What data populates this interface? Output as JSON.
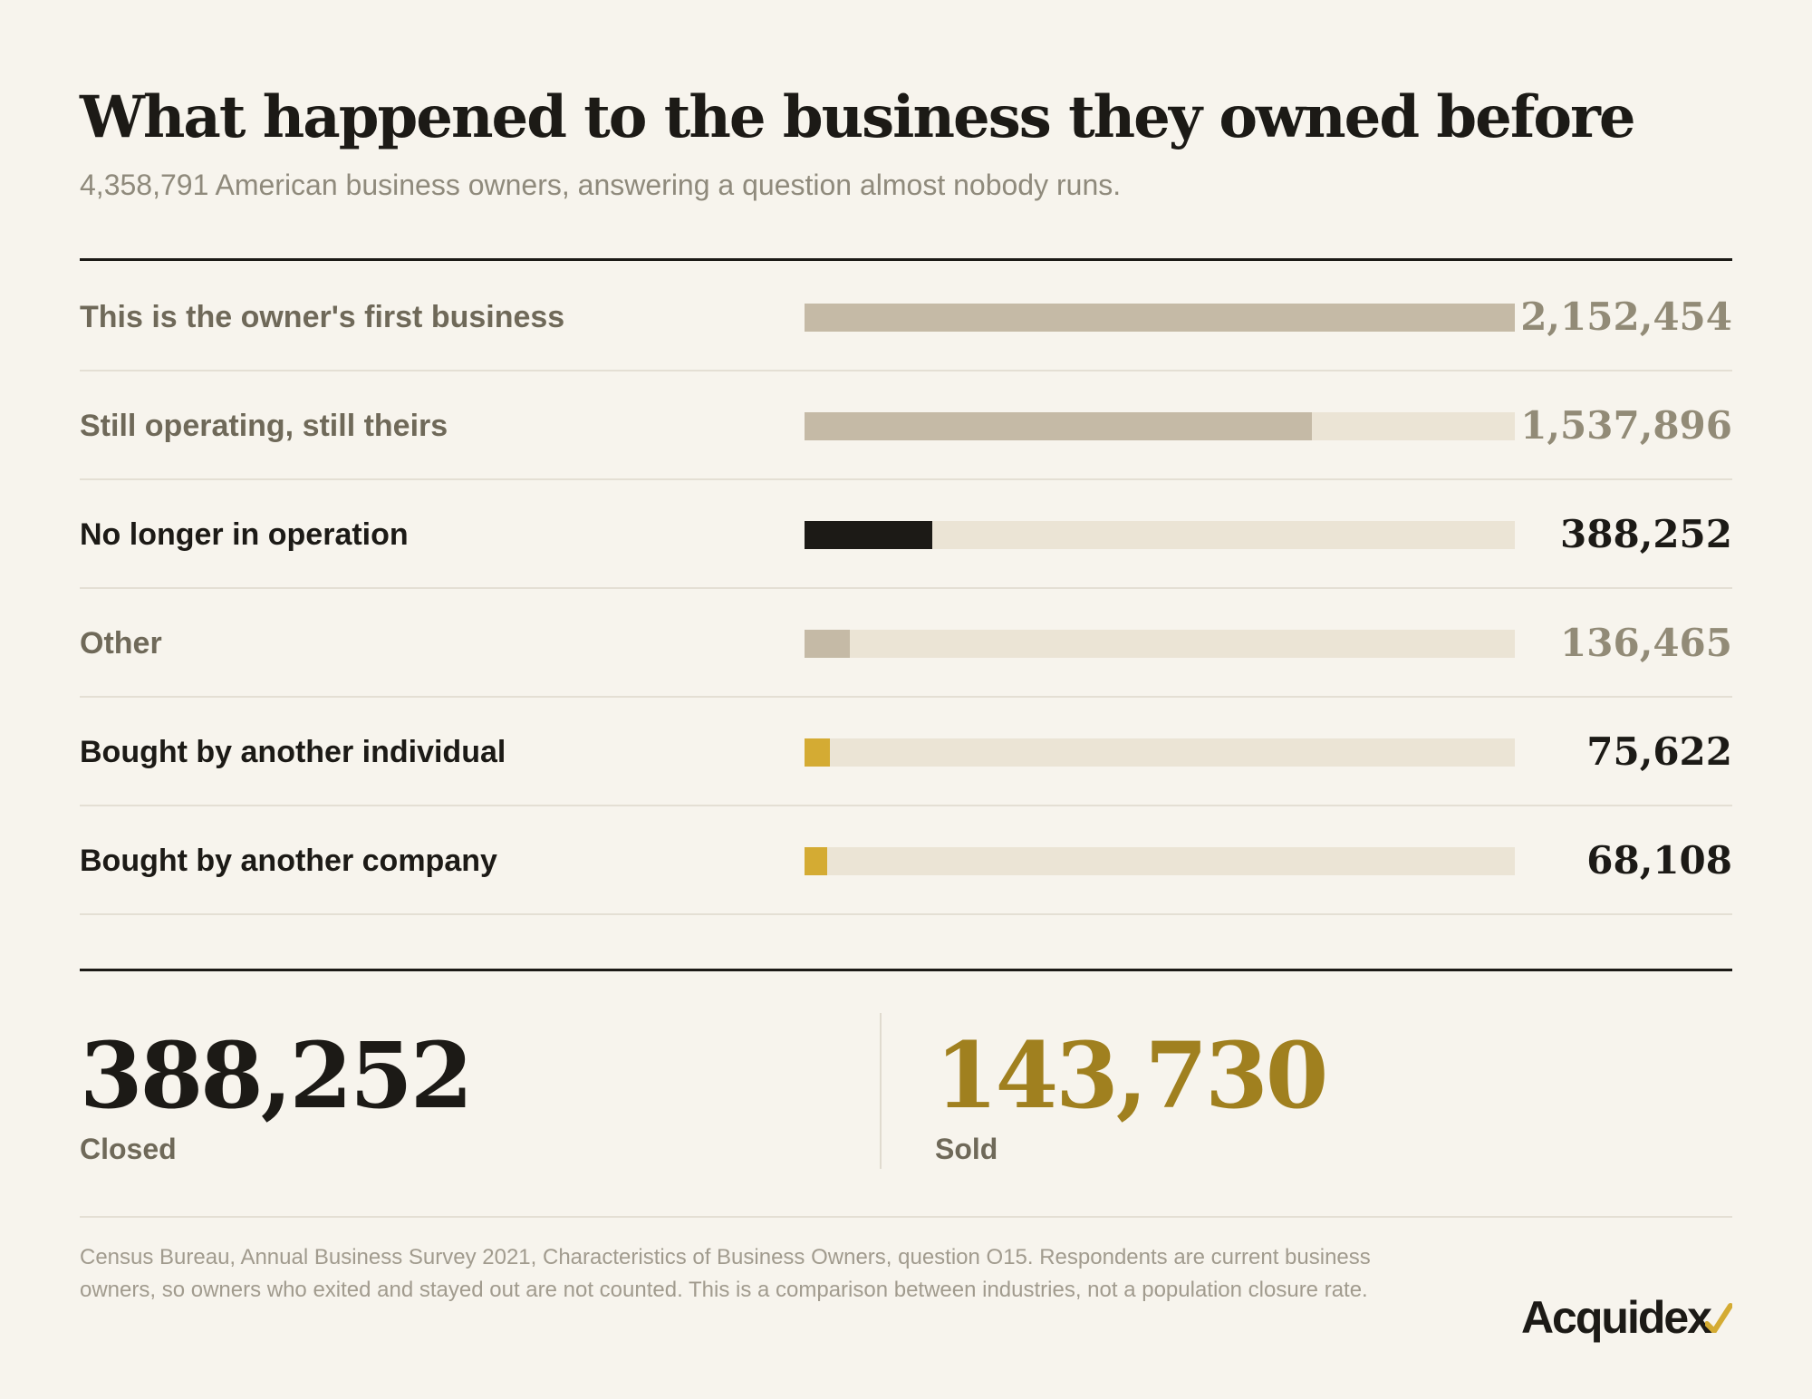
{
  "title": "What happened to the business they owned before",
  "subtitle": "4,358,791 American business owners, answering a question almost nobody runs.",
  "colors": {
    "background": "#f7f4ed",
    "bar_muted": "#c5baa6",
    "bar_dark": "#1c1a16",
    "bar_gold": "#d4ab33",
    "track": "#ebe4d5",
    "sold_accent": "#a0801f"
  },
  "chart_data": {
    "type": "bar",
    "orientation": "horizontal",
    "max_value": 2152454,
    "categories": [
      "This is the owner's first business",
      "Still operating, still theirs",
      "No longer in operation",
      "Other",
      "Bought by another individual",
      "Bought by another company"
    ],
    "values": [
      2152454,
      1537896,
      388252,
      136465,
      75622,
      68108
    ],
    "value_labels": [
      "2,152,454",
      "1,537,896",
      "388,252",
      "136,465",
      "75,622",
      "68,108"
    ],
    "emphasis": [
      "muted",
      "muted",
      "strong",
      "muted",
      "strong",
      "strong"
    ],
    "bar_colors": [
      "#c5baa6",
      "#c5baa6",
      "#1c1a16",
      "#c5baa6",
      "#d4ab33",
      "#d4ab33"
    ]
  },
  "summary": {
    "closed": {
      "value": "388,252",
      "label": "Closed"
    },
    "sold": {
      "value": "143,730",
      "label": "Sold"
    }
  },
  "footnote": "Census Bureau, Annual Business Survey 2021, Characteristics of Business Owners, question O15. Respondents are current business owners, so owners who exited and stayed out are not counted. This is a comparison between industries, not a population closure rate.",
  "logo": {
    "text": "Acquidex",
    "icon": "gold-check-mark-icon"
  }
}
